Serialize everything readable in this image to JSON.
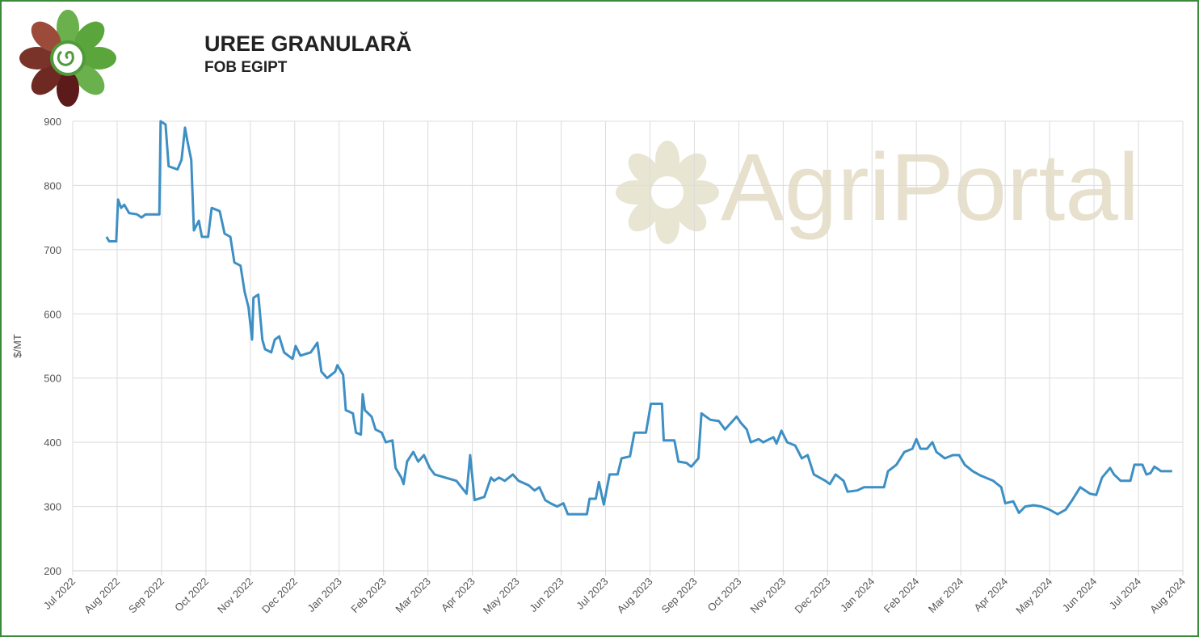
{
  "chart_data": {
    "type": "line",
    "title": "UREE GRANULARĂ",
    "subtitle": "FOB EGIPT",
    "ylabel": "$/MT",
    "watermark": "AgriPortal",
    "color": "#3d8fc4",
    "grid": true,
    "xlim": [
      0,
      25
    ],
    "ylim": [
      200,
      900
    ],
    "yticks": [
      200,
      300,
      400,
      500,
      600,
      700,
      800,
      900
    ],
    "xticks": [
      {
        "value": 0,
        "label": "Jul 2022"
      },
      {
        "value": 1,
        "label": "Aug 2022"
      },
      {
        "value": 2,
        "label": "Sep 2022"
      },
      {
        "value": 3,
        "label": "Oct 2022"
      },
      {
        "value": 4,
        "label": "Nov 2022"
      },
      {
        "value": 5,
        "label": "Dec 2022"
      },
      {
        "value": 6,
        "label": "Jan 2023"
      },
      {
        "value": 7,
        "label": "Feb 2023"
      },
      {
        "value": 8,
        "label": "Mar 2023"
      },
      {
        "value": 9,
        "label": "Apr 2023"
      },
      {
        "value": 10,
        "label": "May 2023"
      },
      {
        "value": 11,
        "label": "Jun 2023"
      },
      {
        "value": 12,
        "label": "Jul 2023"
      },
      {
        "value": 13,
        "label": "Aug 2023"
      },
      {
        "value": 14,
        "label": "Sep 2023"
      },
      {
        "value": 15,
        "label": "Oct 2023"
      },
      {
        "value": 16,
        "label": "Nov 2023"
      },
      {
        "value": 17,
        "label": "Dec 2023"
      },
      {
        "value": 18,
        "label": "Jan 2024"
      },
      {
        "value": 19,
        "label": "Feb 2024"
      },
      {
        "value": 20,
        "label": "Mar 2024"
      },
      {
        "value": 21,
        "label": "Apr 2024"
      },
      {
        "value": 22,
        "label": "May 2024"
      },
      {
        "value": 23,
        "label": "Jun 2024"
      },
      {
        "value": 24,
        "label": "Jul 2024"
      },
      {
        "value": 25,
        "label": "Aug 2024"
      }
    ],
    "x": [
      0.76,
      0.82,
      0.98,
      1.02,
      1.09,
      1.16,
      1.27,
      1.45,
      1.55,
      1.64,
      1.95,
      1.98,
      2.09,
      2.16,
      2.36,
      2.45,
      2.53,
      2.58,
      2.67,
      2.73,
      2.84,
      2.91,
      3.05,
      3.13,
      3.31,
      3.42,
      3.55,
      3.64,
      3.78,
      3.87,
      3.96,
      4.04,
      4.07,
      4.18,
      4.27,
      4.33,
      4.47,
      4.55,
      4.65,
      4.76,
      4.95,
      5.02,
      5.13,
      5.36,
      5.51,
      5.6,
      5.73,
      5.91,
      5.96,
      6.09,
      6.15,
      6.31,
      6.38,
      6.49,
      6.53,
      6.58,
      6.73,
      6.82,
      6.96,
      7.05,
      7.2,
      7.27,
      7.4,
      7.45,
      7.53,
      7.67,
      7.78,
      7.91,
      8.04,
      8.15,
      8.64,
      8.87,
      8.95,
      9.05,
      9.27,
      9.42,
      9.49,
      9.6,
      9.73,
      9.91,
      10.04,
      10.27,
      10.4,
      10.51,
      10.64,
      10.76,
      10.91,
      11.05,
      11.15,
      11.58,
      11.64,
      11.78,
      11.85,
      11.96,
      12.09,
      12.27,
      12.36,
      12.55,
      12.65,
      12.91,
      13.02,
      13.27,
      13.31,
      13.55,
      13.64,
      13.82,
      13.93,
      14.09,
      14.16,
      14.36,
      14.55,
      14.69,
      14.95,
      15.05,
      15.18,
      15.27,
      15.45,
      15.55,
      15.78,
      15.85,
      15.96,
      16.09,
      16.27,
      16.42,
      16.55,
      16.69,
      16.82,
      16.95,
      17.05,
      17.18,
      17.36,
      17.45,
      17.67,
      17.82,
      18.0,
      18.27,
      18.36,
      18.55,
      18.73,
      18.91,
      19.0,
      19.09,
      19.24,
      19.36,
      19.45,
      19.64,
      19.82,
      19.96,
      20.09,
      20.27,
      20.45,
      20.73,
      20.91,
      21.0,
      21.18,
      21.31,
      21.45,
      21.64,
      21.82,
      22.0,
      22.18,
      22.36,
      22.51,
      22.69,
      22.91,
      23.05,
      23.18,
      23.36,
      23.45,
      23.6,
      23.82,
      23.91,
      24.09,
      24.18,
      24.27,
      24.36,
      24.51,
      24.76
    ],
    "values": [
      720,
      713,
      713,
      778,
      765,
      770,
      757,
      755,
      750,
      755,
      755,
      900,
      895,
      830,
      825,
      840,
      890,
      870,
      840,
      730,
      745,
      720,
      720,
      765,
      760,
      725,
      720,
      680,
      675,
      635,
      610,
      560,
      625,
      630,
      560,
      545,
      540,
      560,
      565,
      540,
      530,
      550,
      535,
      540,
      555,
      510,
      500,
      510,
      520,
      505,
      450,
      445,
      415,
      412,
      475,
      450,
      440,
      420,
      415,
      400,
      403,
      360,
      345,
      335,
      370,
      385,
      370,
      380,
      360,
      350,
      340,
      320,
      380,
      310,
      315,
      345,
      340,
      345,
      340,
      350,
      340,
      333,
      325,
      330,
      310,
      305,
      300,
      305,
      288,
      288,
      312,
      312,
      338,
      303,
      350,
      350,
      375,
      378,
      415,
      415,
      460,
      460,
      403,
      403,
      370,
      368,
      362,
      375,
      445,
      435,
      433,
      420,
      440,
      430,
      420,
      400,
      405,
      400,
      408,
      398,
      418,
      400,
      395,
      375,
      380,
      350,
      345,
      340,
      335,
      350,
      340,
      323,
      325,
      330,
      330,
      330,
      355,
      365,
      385,
      390,
      405,
      390,
      390,
      400,
      385,
      375,
      380,
      380,
      365,
      355,
      348,
      340,
      330,
      305,
      308,
      290,
      300,
      302,
      300,
      295,
      288,
      295,
      310,
      330,
      320,
      318,
      345,
      360,
      350,
      340,
      340,
      365,
      365,
      350,
      352,
      362,
      355,
      355
    ]
  }
}
